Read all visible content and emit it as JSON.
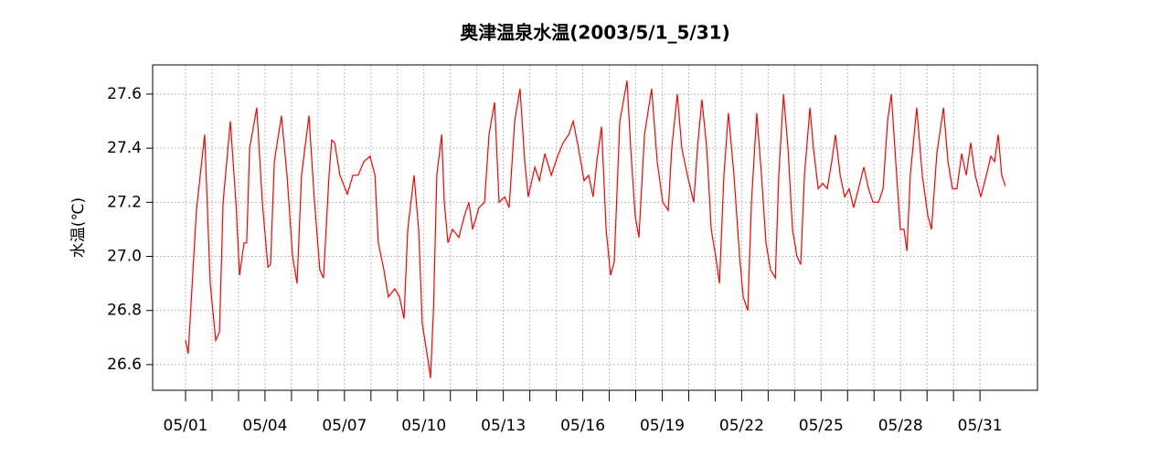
{
  "chart_data": {
    "type": "line",
    "title": "奥津温泉水温(2003/5/1_5/31)",
    "y_label": "水温(℃)",
    "color": "#ff0000",
    "grid": true,
    "xlim": [
      -0.243,
      33.17
    ],
    "ylim": [
      26.505,
      27.708
    ],
    "yticks": [
      {
        "value": 26.6,
        "label": "26.6"
      },
      {
        "value": 26.8,
        "label": "26.8"
      },
      {
        "value": 27.0,
        "label": "27.0"
      },
      {
        "value": 27.2,
        "label": "27.2"
      },
      {
        "value": 27.4,
        "label": "27.4"
      },
      {
        "value": 27.6,
        "label": "27.6"
      }
    ],
    "xticks": [
      {
        "value": 1,
        "label": "05/01"
      },
      {
        "value": 4,
        "label": "05/04"
      },
      {
        "value": 7,
        "label": "05/07"
      },
      {
        "value": 10,
        "label": "05/10"
      },
      {
        "value": 13,
        "label": "05/13"
      },
      {
        "value": 16,
        "label": "05/16"
      },
      {
        "value": 19,
        "label": "05/19"
      },
      {
        "value": 22,
        "label": "05/22"
      },
      {
        "value": 25,
        "label": "05/25"
      },
      {
        "value": 28,
        "label": "05/28"
      },
      {
        "value": 31,
        "label": "05/31"
      }
    ],
    "xminorticks": [
      2,
      3,
      5,
      6,
      8,
      9,
      11,
      12,
      14,
      15,
      17,
      18,
      20,
      21,
      23,
      24,
      26,
      27,
      29,
      30
    ],
    "x": [
      1.0,
      1.1,
      1.41,
      1.72,
      1.93,
      2.14,
      2.28,
      2.42,
      2.69,
      2.9,
      3.04,
      3.21,
      3.31,
      3.42,
      3.69,
      3.9,
      4.11,
      4.21,
      4.35,
      4.62,
      4.83,
      5.04,
      5.21,
      5.38,
      5.66,
      5.87,
      6.07,
      6.21,
      6.42,
      6.52,
      6.63,
      6.83,
      7.11,
      7.32,
      7.52,
      7.73,
      7.97,
      8.15,
      8.28,
      8.49,
      8.66,
      8.9,
      9.08,
      9.25,
      9.39,
      9.63,
      9.8,
      9.94,
      10.15,
      10.25,
      10.36,
      10.49,
      10.67,
      10.77,
      10.91,
      11.08,
      11.32,
      11.53,
      11.7,
      11.84,
      12.08,
      12.29,
      12.46,
      12.67,
      12.84,
      13.05,
      13.22,
      13.43,
      13.63,
      13.81,
      13.94,
      14.19,
      14.36,
      14.57,
      14.81,
      15.05,
      15.26,
      15.47,
      15.64,
      15.84,
      16.05,
      16.22,
      16.39,
      16.53,
      16.71,
      16.88,
      17.05,
      17.19,
      17.4,
      17.67,
      17.81,
      17.98,
      18.12,
      18.33,
      18.6,
      18.81,
      19.02,
      19.23,
      19.36,
      19.57,
      19.74,
      19.95,
      20.19,
      20.33,
      20.5,
      20.68,
      20.85,
      21.02,
      21.16,
      21.33,
      21.5,
      21.71,
      21.92,
      22.06,
      22.23,
      22.37,
      22.57,
      22.75,
      22.92,
      23.09,
      23.27,
      23.4,
      23.58,
      23.75,
      23.92,
      24.09,
      24.23,
      24.37,
      24.58,
      24.71,
      24.89,
      25.06,
      25.23,
      25.4,
      25.54,
      25.72,
      25.89,
      26.06,
      26.23,
      26.41,
      26.61,
      26.79,
      26.96,
      27.17,
      27.34,
      27.51,
      27.65,
      27.82,
      27.99,
      28.13,
      28.24,
      28.37,
      28.61,
      28.82,
      29.03,
      29.17,
      29.37,
      29.62,
      29.79,
      29.96,
      30.13,
      30.31,
      30.48,
      30.65,
      30.82,
      31.03,
      31.24,
      31.41,
      31.55,
      31.69,
      31.82,
      31.96
    ],
    "values": [
      26.69,
      26.64,
      27.17,
      27.45,
      26.9,
      26.69,
      26.72,
      27.2,
      27.5,
      27.2,
      26.93,
      27.05,
      27.05,
      27.4,
      27.55,
      27.2,
      26.96,
      26.97,
      27.35,
      27.52,
      27.3,
      27.0,
      26.9,
      27.3,
      27.52,
      27.2,
      26.95,
      26.92,
      27.3,
      27.43,
      27.42,
      27.3,
      27.23,
      27.3,
      27.3,
      27.35,
      27.37,
      27.3,
      27.05,
      26.95,
      26.85,
      26.88,
      26.85,
      26.77,
      27.1,
      27.3,
      27.1,
      26.75,
      26.62,
      26.55,
      26.8,
      27.3,
      27.45,
      27.2,
      27.05,
      27.1,
      27.07,
      27.15,
      27.2,
      27.1,
      27.18,
      27.2,
      27.45,
      27.57,
      27.2,
      27.22,
      27.18,
      27.5,
      27.62,
      27.35,
      27.22,
      27.33,
      27.28,
      27.38,
      27.3,
      27.37,
      27.42,
      27.45,
      27.5,
      27.4,
      27.28,
      27.3,
      27.22,
      27.35,
      27.48,
      27.1,
      26.93,
      26.98,
      27.5,
      27.65,
      27.4,
      27.15,
      27.07,
      27.45,
      27.62,
      27.35,
      27.2,
      27.17,
      27.4,
      27.6,
      27.4,
      27.3,
      27.2,
      27.4,
      27.58,
      27.4,
      27.1,
      27.0,
      26.9,
      27.3,
      27.53,
      27.3,
      27.0,
      26.85,
      26.8,
      27.2,
      27.53,
      27.3,
      27.05,
      26.95,
      26.92,
      27.3,
      27.6,
      27.4,
      27.1,
      27.0,
      26.97,
      27.3,
      27.55,
      27.4,
      27.25,
      27.27,
      27.25,
      27.35,
      27.45,
      27.3,
      27.22,
      27.25,
      27.18,
      27.25,
      27.33,
      27.25,
      27.2,
      27.2,
      27.25,
      27.5,
      27.6,
      27.35,
      27.1,
      27.1,
      27.02,
      27.3,
      27.55,
      27.3,
      27.15,
      27.1,
      27.38,
      27.55,
      27.35,
      27.25,
      27.25,
      27.38,
      27.3,
      27.42,
      27.3,
      27.22,
      27.3,
      27.37,
      27.35,
      27.45,
      27.3,
      27.26
    ]
  }
}
